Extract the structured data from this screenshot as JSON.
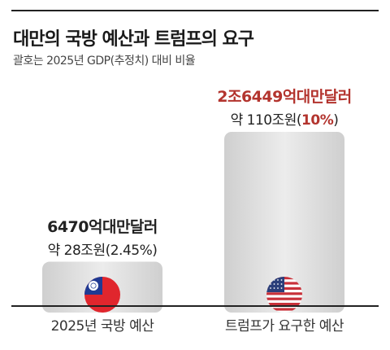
{
  "title": "대만의 국방 예산과 트럼프의 요구",
  "subtitle": "괄호는 2025년 GDP(추정치) 대비 비율",
  "chart_data": {
    "type": "bar",
    "categories": [
      "2025년 국방 예산",
      "트럼프가 요구한 예산"
    ],
    "values": [
      28,
      110
    ],
    "unit": "조원",
    "labels": [
      {
        "main": "6470억대만달러",
        "sub_prefix": "약 28조원(",
        "sub_pct": "2.45%",
        "sub_suffix": ")"
      },
      {
        "main": "2조6449억대만달러",
        "sub_prefix": "약 110조원(",
        "sub_pct": "10%",
        "sub_suffix": ")"
      }
    ],
    "percent_of_gdp": [
      2.45,
      10
    ],
    "flags": [
      "taiwan-flag-icon",
      "us-flag-icon"
    ],
    "colors": {
      "bar": "#dcdcdc",
      "highlight": "#b3342e"
    }
  }
}
